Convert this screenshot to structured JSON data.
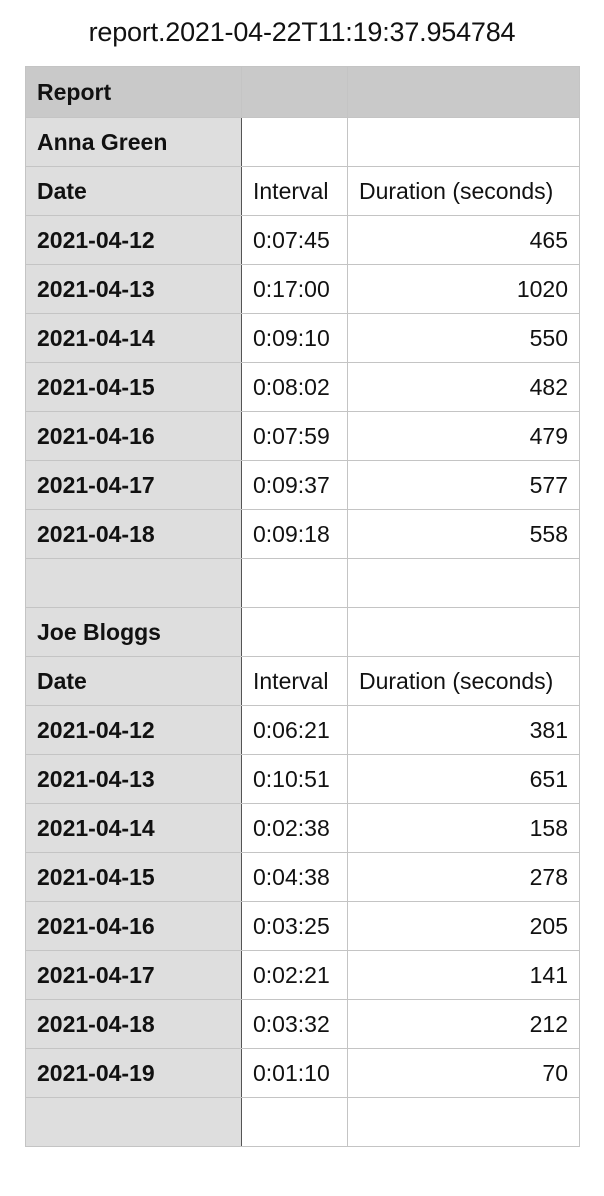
{
  "title": "report.2021-04-22T11:19:37.954784",
  "report_label": "Report",
  "sections": [
    {
      "name": "Anna Green",
      "headers": [
        "Date",
        "Interval",
        "Duration (seconds)"
      ],
      "rows": [
        [
          "2021-04-12",
          "0:07:45",
          "465"
        ],
        [
          "2021-04-13",
          "0:17:00",
          "1020"
        ],
        [
          "2021-04-14",
          "0:09:10",
          "550"
        ],
        [
          "2021-04-15",
          "0:08:02",
          "482"
        ],
        [
          "2021-04-16",
          "0:07:59",
          "479"
        ],
        [
          "2021-04-17",
          "0:09:37",
          "577"
        ],
        [
          "2021-04-18",
          "0:09:18",
          "558"
        ]
      ]
    },
    {
      "name": "Joe Bloggs",
      "headers": [
        "Date",
        "Interval",
        "Duration (seconds)"
      ],
      "rows": [
        [
          "2021-04-12",
          "0:06:21",
          "381"
        ],
        [
          "2021-04-13",
          "0:10:51",
          "651"
        ],
        [
          "2021-04-14",
          "0:02:38",
          "158"
        ],
        [
          "2021-04-15",
          "0:04:38",
          "278"
        ],
        [
          "2021-04-16",
          "0:03:25",
          "205"
        ],
        [
          "2021-04-17",
          "0:02:21",
          "141"
        ],
        [
          "2021-04-18",
          "0:03:32",
          "212"
        ],
        [
          "2021-04-19",
          "0:01:10",
          "70"
        ]
      ]
    }
  ],
  "colors": {
    "header_fill": "#c9c9c9",
    "first_column_fill": "#dedede",
    "gridline": "#c4c4c4"
  }
}
